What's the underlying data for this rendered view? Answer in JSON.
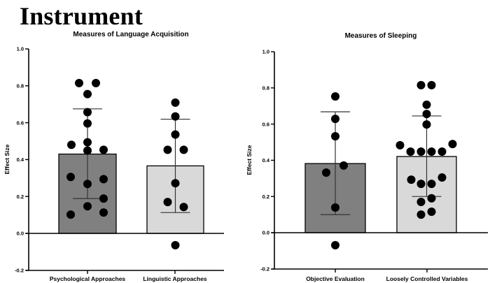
{
  "header": {
    "title": "Instrument"
  },
  "chart_data": [
    {
      "type": "bar",
      "title": "Measures of Language Acquisition",
      "xlabel": "",
      "ylabel": "Effect Size",
      "ylim": [
        -0.2,
        1.0
      ],
      "yticks": [
        "1.0",
        "0.8",
        "0.6",
        "0.4",
        "0.2",
        "0.0",
        "-0.2"
      ],
      "ytick_values": [
        1.0,
        0.8,
        0.6,
        0.4,
        0.2,
        0.0,
        -0.2
      ],
      "categories": [
        "Psychological Approaches",
        "Linguistic Approaches"
      ],
      "values": [
        0.43,
        0.366
      ],
      "bar_colors": [
        "#808080",
        "#d9d9d9"
      ],
      "error_bars": [
        {
          "upper": 0.675,
          "lower": 0.189
        },
        {
          "upper": 0.619,
          "lower": 0.113
        }
      ],
      "points": [
        [
          0.815,
          0.815,
          0.755,
          0.657,
          0.596,
          0.48,
          0.494,
          0.449,
          0.453,
          0.306,
          0.268,
          0.294,
          0.189,
          0.147,
          0.102,
          0.113
        ],
        [
          0.709,
          0.634,
          0.536,
          0.453,
          0.453,
          0.272,
          0.17,
          0.143,
          -0.064
        ]
      ],
      "grid": false
    },
    {
      "type": "bar",
      "title": "Measures of Sleeping",
      "xlabel": "",
      "ylabel": "Effect Size",
      "ylim": [
        -0.2,
        1.0
      ],
      "yticks": [
        "1.0",
        "0.8",
        "0.6",
        "0.4",
        "0.2",
        "0.0",
        "-0.2"
      ],
      "ytick_values": [
        1.0,
        0.8,
        0.6,
        0.4,
        0.2,
        0.0,
        -0.2
      ],
      "categories": [
        "Objective Evaluation",
        "Loosely Controlled Variables"
      ],
      "values": [
        0.382,
        0.421
      ],
      "bar_colors": [
        "#808080",
        "#d9d9d9"
      ],
      "error_bars": [
        {
          "upper": 0.668,
          "lower": 0.1
        },
        {
          "upper": 0.645,
          "lower": 0.2
        }
      ],
      "points": [
        [
          0.753,
          0.629,
          0.533,
          0.371,
          0.332,
          0.139,
          -0.069
        ],
        [
          0.815,
          0.815,
          0.707,
          0.656,
          0.598,
          0.483,
          0.448,
          0.448,
          0.448,
          0.448,
          0.49,
          0.293,
          0.27,
          0.27,
          0.305,
          0.17,
          0.19,
          0.1,
          0.116
        ]
      ],
      "grid": false
    }
  ]
}
